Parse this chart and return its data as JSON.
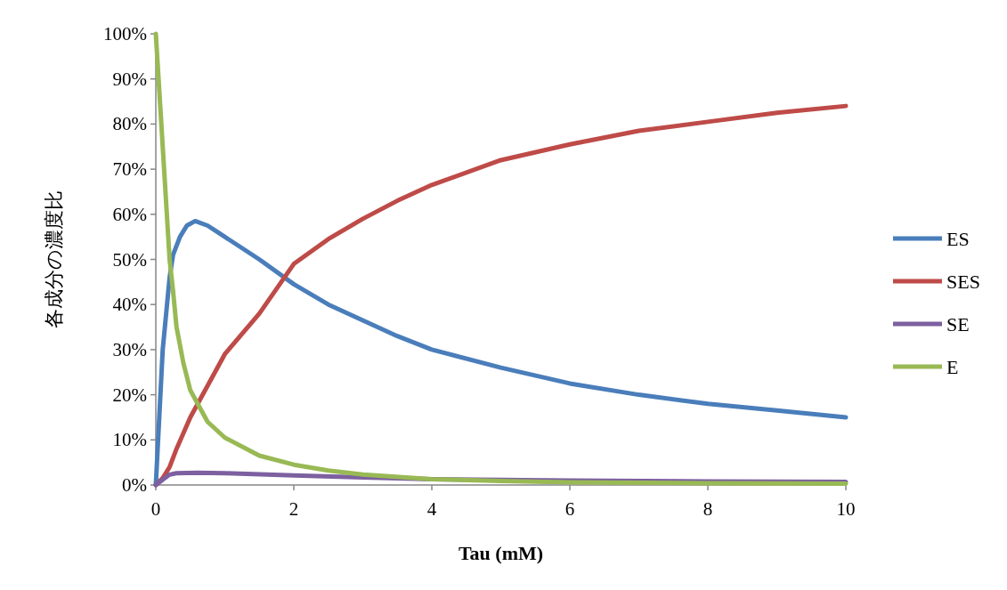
{
  "chart_data": {
    "type": "line",
    "xlabel": "Tau (mM)",
    "ylabel": "各成分の濃度比",
    "xlim": [
      0,
      10
    ],
    "xticks": [
      0,
      2,
      4,
      6,
      8,
      10
    ],
    "ylim": [
      0,
      100
    ],
    "yticks": [
      {
        "value": 0,
        "label": "0%"
      },
      {
        "value": 10,
        "label": "10%"
      },
      {
        "value": 20,
        "label": "20%"
      },
      {
        "value": 30,
        "label": "30%"
      },
      {
        "value": 40,
        "label": "40%"
      },
      {
        "value": 50,
        "label": "50%"
      },
      {
        "value": 60,
        "label": "60%"
      },
      {
        "value": 70,
        "label": "70%"
      },
      {
        "value": 80,
        "label": "80%"
      },
      {
        "value": 90,
        "label": "90%"
      },
      {
        "value": 100,
        "label": "100%"
      }
    ],
    "grid": false,
    "legend": "right",
    "marker": "none",
    "line_style": "solid",
    "series": [
      {
        "name": "ES",
        "color": "#4a7ebb",
        "x": [
          0,
          0.1,
          0.2,
          0.25,
          0.35,
          0.45,
          0.57,
          0.75,
          1,
          1.5,
          2,
          2.5,
          3,
          3.5,
          4,
          5,
          6,
          7,
          8,
          9,
          10
        ],
        "values": [
          0,
          30,
          46,
          51,
          55,
          57.5,
          58.5,
          57.5,
          55,
          50,
          44.5,
          40,
          36.5,
          33,
          30,
          26,
          22.5,
          20,
          18,
          16.5,
          15
        ]
      },
      {
        "name": "SES",
        "color": "#be4b48",
        "x": [
          0,
          0.1,
          0.2,
          0.3,
          0.5,
          0.75,
          1,
          1.5,
          2,
          2.5,
          3,
          3.5,
          4,
          5,
          6,
          7,
          8,
          9,
          10
        ],
        "values": [
          0,
          1.5,
          4,
          8,
          15,
          22,
          29,
          38,
          49,
          54.5,
          59,
          63,
          66.5,
          72,
          75.5,
          78.5,
          80.5,
          82.5,
          84
        ]
      },
      {
        "name": "SE",
        "color": "#7d60a0",
        "x": [
          0,
          0.1,
          0.2,
          0.3,
          0.6,
          1,
          2,
          3,
          4,
          6,
          8,
          10
        ],
        "values": [
          0,
          1.2,
          2.3,
          2.6,
          2.7,
          2.6,
          2.1,
          1.7,
          1.3,
          1,
          0.8,
          0.7
        ]
      },
      {
        "name": "E",
        "color": "#98b954",
        "x": [
          0,
          0.1,
          0.2,
          0.25,
          0.3,
          0.4,
          0.5,
          0.75,
          1,
          1.5,
          2,
          2.5,
          3,
          4,
          5,
          6,
          8,
          10
        ],
        "values": [
          100,
          75,
          50,
          43,
          35,
          27,
          21,
          14,
          10.5,
          6.5,
          4.5,
          3.2,
          2.3,
          1.3,
          0.9,
          0.6,
          0.4,
          0.3
        ]
      }
    ]
  }
}
